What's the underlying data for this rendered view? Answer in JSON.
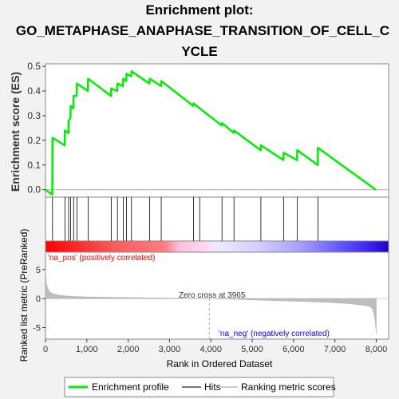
{
  "title_lines": [
    "Enrichment plot:",
    "GO_METAPHASE_ANAPHASE_TRANSITION_OF_CELL_C",
    "YCLE"
  ],
  "chart_data": {
    "type": "line",
    "title": "Enrichment plot: GO_METAPHASE_ANAPHASE_TRANSITION_OF_CELL_CYCLE",
    "xlabel": "Rank in Ordered Dataset",
    "ylabel_top": "Enrichment score (ES)",
    "ylabel_bottom": "Ranked list metric (PreRanked)",
    "xlim": [
      0,
      8300
    ],
    "es_ylim": [
      -0.03,
      0.51
    ],
    "metric_ylim": [
      -7,
      8
    ],
    "x_ticks": [
      0,
      1000,
      2000,
      3000,
      4000,
      5000,
      6000,
      7000,
      8000
    ],
    "x_tick_labels": [
      "0",
      "1,000",
      "2,000",
      "3,000",
      "4,000",
      "5,000",
      "6,000",
      "7,000",
      "8,000"
    ],
    "es_ticks": [
      0.0,
      0.1,
      0.2,
      0.3,
      0.4,
      0.5
    ],
    "es_tick_labels": [
      "0.0",
      "0.1",
      "0.2",
      "0.3",
      "0.4",
      "0.5"
    ],
    "metric_ticks": [
      -5,
      0,
      5
    ],
    "metric_tick_labels": [
      "-5",
      "0",
      "5"
    ],
    "hits": [
      170,
      470,
      560,
      610,
      680,
      760,
      1030,
      1590,
      1740,
      1880,
      1960,
      2080,
      2520,
      2800,
      3580,
      3730,
      4270,
      4560,
      5210,
      5760,
      6090,
      6590
    ],
    "es_profile": [
      [
        0,
        0.0
      ],
      [
        165,
        -0.02
      ],
      [
        170,
        0.21
      ],
      [
        465,
        0.18
      ],
      [
        470,
        0.24
      ],
      [
        555,
        0.23
      ],
      [
        560,
        0.28
      ],
      [
        605,
        0.29
      ],
      [
        610,
        0.34
      ],
      [
        675,
        0.33
      ],
      [
        680,
        0.38
      ],
      [
        755,
        0.38
      ],
      [
        760,
        0.43
      ],
      [
        1025,
        0.4
      ],
      [
        1030,
        0.45
      ],
      [
        1585,
        0.38
      ],
      [
        1590,
        0.41
      ],
      [
        1735,
        0.4
      ],
      [
        1740,
        0.43
      ],
      [
        1875,
        0.42
      ],
      [
        1880,
        0.45
      ],
      [
        1955,
        0.44
      ],
      [
        1960,
        0.47
      ],
      [
        2075,
        0.46
      ],
      [
        2080,
        0.48
      ],
      [
        2515,
        0.43
      ],
      [
        2520,
        0.45
      ],
      [
        2795,
        0.42
      ],
      [
        2800,
        0.44
      ],
      [
        3575,
        0.34
      ],
      [
        3580,
        0.35
      ],
      [
        3725,
        0.33
      ],
      [
        3730,
        0.33
      ],
      [
        4265,
        0.26
      ],
      [
        4270,
        0.27
      ],
      [
        4555,
        0.23
      ],
      [
        4560,
        0.24
      ],
      [
        5205,
        0.16
      ],
      [
        5210,
        0.18
      ],
      [
        5755,
        0.12
      ],
      [
        5760,
        0.15
      ],
      [
        6085,
        0.12
      ],
      [
        6090,
        0.16
      ],
      [
        6585,
        0.1
      ],
      [
        6590,
        0.17
      ],
      [
        7990,
        0.0
      ]
    ],
    "zero_cross": 3965,
    "zero_cross_label": "Zero cross at 3965",
    "n_genes": 8000,
    "pos_label": "'na_pos' (positively correlated)",
    "neg_label": "'na_neg' (negatively correlated)",
    "legend": {
      "placement": "bottom",
      "items": [
        {
          "label": "Enrichment profile",
          "color": "#00ee00"
        },
        {
          "label": "Hits",
          "color": "#777777"
        },
        {
          "label": "Ranking metric scores",
          "color": "#cccccc"
        }
      ]
    }
  },
  "colors": {
    "profile": "#00ee00",
    "hit": "#000000",
    "metric_fill": "#bebebe",
    "pos_text": "#ff0000",
    "neg_text": "#0000ff",
    "panel_bg": "#ffffff",
    "page_bg": "#f2f2f2"
  }
}
